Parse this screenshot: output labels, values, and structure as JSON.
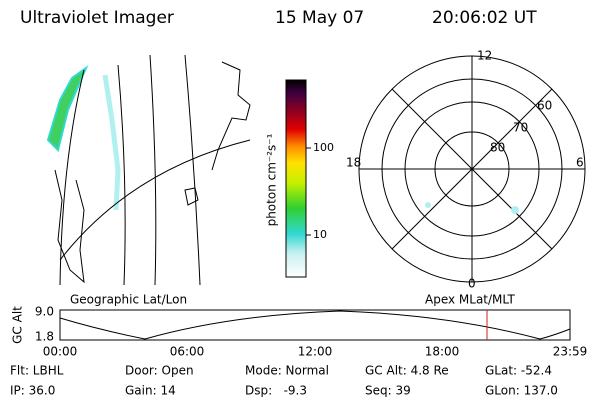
{
  "header": {
    "title": "Ultraviolet Imager",
    "date": "15 May 07",
    "time": "20:06:02 UT"
  },
  "colorbar": {
    "label": "photon cm⁻²s⁻¹",
    "ticks": [
      "100",
      "10"
    ]
  },
  "polar": {
    "mlt_labels": [
      "12",
      "18",
      "6",
      "0"
    ],
    "lat_labels": [
      "60",
      "70",
      "80"
    ]
  },
  "strip": {
    "left_label": "Geographic Lat/Lon",
    "right_label": "Apex MLat/MLT",
    "axis_label": "GC Alt",
    "y_ticks": [
      "9.0",
      "1.8"
    ],
    "x_ticks": [
      "00:00",
      "06:00",
      "12:00",
      "18:00",
      "23:59"
    ]
  },
  "footer": [
    [
      "Flt: LBHL",
      "Door: Open",
      "Mode: Normal",
      "GC Alt: 4.8 Re",
      "GLat: -52.4"
    ],
    [
      "IP: 36.0",
      "Gain: 14",
      "Dsp:   -9.3",
      "Seq: 39",
      "GLon: 137.0"
    ]
  ]
}
